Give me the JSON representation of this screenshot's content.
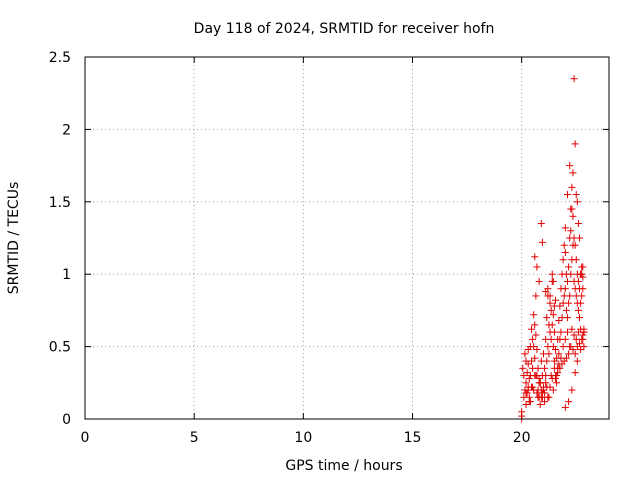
{
  "chart_data": {
    "type": "scatter",
    "title": "Day 118 of 2024, SRMTID for receiver hofn",
    "xlabel": "GPS time / hours",
    "ylabel": "SRMTID / TECUs",
    "xlim": [
      0,
      24
    ],
    "ylim": [
      0,
      2.5
    ],
    "xticks": [
      0,
      5,
      10,
      15,
      20
    ],
    "yticks": [
      0,
      0.5,
      1,
      1.5,
      2,
      2.5
    ],
    "ytick_labels": [
      "0",
      "0.5",
      "1",
      "1.5",
      "2",
      "2.5"
    ],
    "grid": true,
    "marker": "+",
    "color": "#e00000",
    "series": [
      {
        "x": [
          20.0,
          20.0,
          20.0,
          20.05,
          20.1,
          20.1,
          20.15,
          20.15,
          20.2,
          20.2,
          20.2,
          20.25,
          20.25,
          20.3,
          20.3,
          20.3,
          20.35,
          20.35,
          20.4,
          20.4,
          20.45,
          20.45,
          20.5,
          20.5,
          20.55,
          20.55,
          20.6,
          20.6,
          20.65,
          20.65,
          20.7,
          20.7,
          20.75,
          20.75,
          20.8,
          20.8,
          20.85,
          20.85,
          20.9,
          20.9,
          20.95,
          20.95,
          21.0,
          21.0,
          21.05,
          21.05,
          21.1,
          21.1,
          21.15,
          21.15,
          21.2,
          21.2,
          21.25,
          21.25,
          21.3,
          21.3,
          21.35,
          21.35,
          21.4,
          21.4,
          21.45,
          21.45,
          21.5,
          21.5,
          21.55,
          21.55,
          21.6,
          21.6,
          21.65,
          21.65,
          21.7,
          21.7,
          21.75,
          21.75,
          21.8,
          21.8,
          21.85,
          21.85,
          21.9,
          21.9,
          21.95,
          21.95,
          22.0,
          22.0,
          22.05,
          22.05,
          22.1,
          22.1,
          22.15,
          22.15,
          22.2,
          22.2,
          22.25,
          22.25,
          22.3,
          22.3,
          22.35,
          22.35,
          22.4,
          22.4,
          22.45,
          22.45,
          22.5,
          22.5,
          22.55,
          22.55,
          22.6,
          22.6,
          22.65,
          22.65,
          22.7,
          22.7,
          22.75,
          22.75,
          22.8,
          22.8,
          22.85,
          22.85,
          20.2,
          20.3,
          20.4,
          20.5,
          20.6,
          20.7,
          20.8,
          20.9,
          21.0,
          21.1,
          21.2,
          21.3,
          21.4,
          21.5,
          21.6,
          21.7,
          21.8,
          21.9,
          22.0,
          22.1,
          22.2,
          22.3,
          22.4,
          22.5,
          22.6,
          22.7,
          22.8,
          20.35,
          20.55,
          20.75,
          20.95,
          21.15,
          21.35,
          21.55,
          21.75,
          21.95,
          22.15,
          22.35,
          22.55,
          22.75,
          20.45,
          20.65,
          20.85,
          21.05,
          21.25,
          21.45,
          21.65,
          21.85,
          22.05,
          22.25,
          22.45,
          22.65,
          22.85,
          22.4,
          22.45,
          22.35,
          22.3,
          22.5,
          22.55,
          20.9,
          20.95,
          21.4,
          21.45,
          22.0,
          22.1,
          22.2,
          22.25,
          22.6,
          22.65,
          22.7,
          22.75,
          22.8,
          21.2,
          21.3,
          21.5,
          21.55,
          21.1,
          20.8,
          20.7,
          20.6,
          22.0,
          22.15,
          22.3,
          22.45,
          22.55,
          22.7,
          22.8,
          22.85
        ],
        "y": [
          0.0,
          0.02,
          0.05,
          0.35,
          0.15,
          0.3,
          0.2,
          0.45,
          0.1,
          0.25,
          0.4,
          0.18,
          0.32,
          0.22,
          0.38,
          0.48,
          0.15,
          0.28,
          0.3,
          0.5,
          0.4,
          0.62,
          0.35,
          0.55,
          0.5,
          0.72,
          0.42,
          0.65,
          0.58,
          0.85,
          0.3,
          0.48,
          0.2,
          0.35,
          0.15,
          0.28,
          0.1,
          0.25,
          0.2,
          0.4,
          0.15,
          0.3,
          0.22,
          0.45,
          0.18,
          0.35,
          0.3,
          0.55,
          0.4,
          0.7,
          0.5,
          0.85,
          0.45,
          0.65,
          0.6,
          0.8,
          0.55,
          0.75,
          0.65,
          0.95,
          0.5,
          0.72,
          0.4,
          0.6,
          0.3,
          0.48,
          0.25,
          0.42,
          0.35,
          0.55,
          0.45,
          0.68,
          0.55,
          0.78,
          0.6,
          0.9,
          0.7,
          1.0,
          0.8,
          1.1,
          0.85,
          1.2,
          0.9,
          1.15,
          0.75,
          1.0,
          0.7,
          0.95,
          0.8,
          1.05,
          0.85,
          1.25,
          1.0,
          1.3,
          1.1,
          1.45,
          1.2,
          1.4,
          0.95,
          1.25,
          0.9,
          1.2,
          0.85,
          1.1,
          0.8,
          1.0,
          0.75,
          0.95,
          0.7,
          0.9,
          0.8,
          1.0,
          0.85,
          1.0,
          0.9,
          1.05,
          0.6,
          0.62,
          0.18,
          0.2,
          0.12,
          0.22,
          0.3,
          0.18,
          0.25,
          0.15,
          0.2,
          0.25,
          0.15,
          0.22,
          0.28,
          0.35,
          0.3,
          0.38,
          0.42,
          0.5,
          0.55,
          0.6,
          0.5,
          0.62,
          0.58,
          0.55,
          0.6,
          0.62,
          0.58,
          0.12,
          0.2,
          0.15,
          0.18,
          0.22,
          0.3,
          0.28,
          0.35,
          0.4,
          0.45,
          0.48,
          0.5,
          0.55,
          0.22,
          0.3,
          0.25,
          0.12,
          0.15,
          0.2,
          0.32,
          0.38,
          0.42,
          0.5,
          0.45,
          0.52,
          0.5,
          2.35,
          1.9,
          1.7,
          1.6,
          1.55,
          1.5,
          1.35,
          1.22,
          1.0,
          0.95,
          1.32,
          1.55,
          1.75,
          1.45,
          1.35,
          1.25,
          1.0,
          1.05,
          0.98,
          0.9,
          0.85,
          0.78,
          0.82,
          0.88,
          0.95,
          1.05,
          1.12,
          0.08,
          0.12,
          0.2,
          0.32,
          0.4,
          0.48,
          0.55,
          0.6
        ]
      }
    ]
  }
}
